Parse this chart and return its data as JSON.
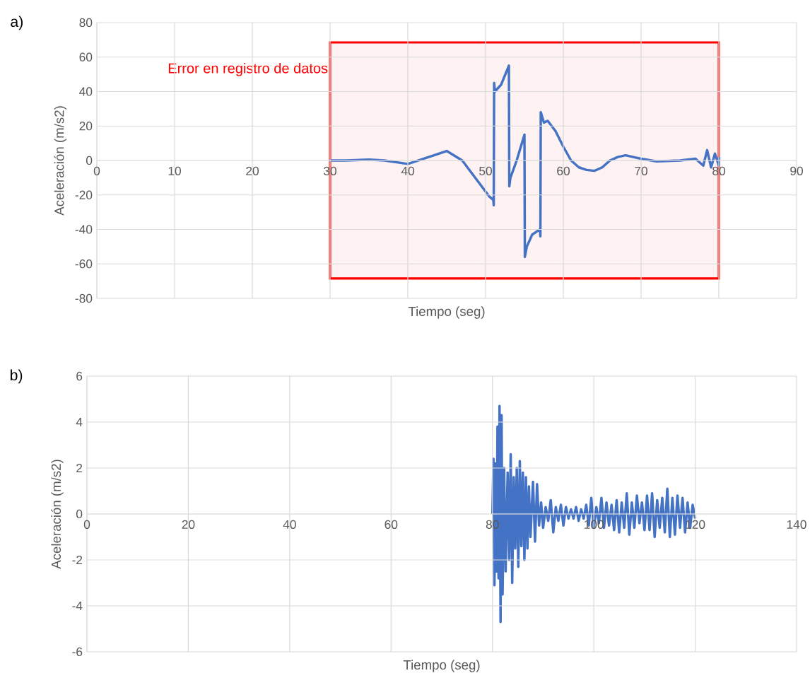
{
  "chart_data": [
    {
      "type": "line",
      "xlabel": "Tiempo (seg)",
      "ylabel": "Aceleración (m/s2)",
      "annotations": [
        "a)"
      ],
      "color": "#4472c4",
      "grid": true,
      "xlim": [
        0,
        90
      ],
      "ylim": [
        -80,
        80
      ],
      "xticks": [
        0,
        10,
        20,
        30,
        40,
        50,
        60,
        70,
        80,
        90
      ],
      "yticks": [
        -80,
        -60,
        -40,
        -20,
        0,
        20,
        40,
        60,
        80
      ],
      "bands": [
        {
          "axis": "x",
          "from": 30,
          "to": 80,
          "label": "Error en registro de datos",
          "color": "#ff0000"
        }
      ],
      "x": [
        30,
        32,
        35,
        37,
        40,
        42,
        45,
        47,
        49,
        50.5,
        51,
        51.05,
        51.1,
        51.2,
        52,
        53,
        53.05,
        53.2,
        54,
        55,
        55.05,
        55.3,
        56,
        57,
        57.05,
        57.1,
        57.5,
        58,
        59,
        60,
        61,
        62,
        63,
        64,
        65,
        66,
        67,
        68,
        69,
        70,
        72,
        75,
        77,
        78,
        78.5,
        79,
        79.5,
        80,
        80.05
      ],
      "values": [
        0,
        0,
        0.5,
        0,
        -2,
        1,
        5.5,
        0,
        -12,
        -21,
        -23,
        -26,
        45,
        40,
        44,
        55,
        -15,
        -10,
        0,
        15,
        -56,
        -50,
        -43,
        -40,
        -44,
        28,
        22,
        23,
        17,
        8,
        0,
        -4,
        -5.5,
        -6,
        -4,
        0,
        2,
        3,
        2,
        1,
        -0.5,
        0,
        1,
        -3,
        6,
        -4,
        4,
        -3,
        2
      ]
    },
    {
      "type": "line",
      "xlabel": "Tiempo (seg)",
      "ylabel": "Aceleración (m/s2)",
      "annotations": [
        "b)"
      ],
      "color": "#4472c4",
      "grid": true,
      "xlim": [
        0,
        140
      ],
      "ylim": [
        -6,
        6
      ],
      "xticks": [
        0,
        20,
        40,
        60,
        80,
        100,
        120,
        140
      ],
      "yticks": [
        -6,
        -4,
        -2,
        0,
        2,
        4,
        6
      ],
      "x": [
        80,
        80.2,
        80.4,
        80.6,
        80.8,
        81,
        81.2,
        81.4,
        81.6,
        81.8,
        82,
        82.3,
        82.6,
        83,
        83.3,
        83.6,
        83.9,
        84.2,
        84.5,
        84.8,
        85.1,
        85.4,
        85.7,
        86,
        86.3,
        86.6,
        86.9,
        87.2,
        87.5,
        88,
        88.4,
        88.8,
        89.2,
        89.6,
        90,
        90.5,
        91,
        91.5,
        92,
        92.5,
        93,
        93.5,
        94,
        94.5,
        95,
        95.5,
        96,
        96.5,
        97,
        97.5,
        98,
        98.5,
        99,
        99.5,
        100,
        100.5,
        101,
        101.5,
        102,
        102.5,
        103,
        103.5,
        104,
        104.5,
        105,
        105.5,
        106,
        106.5,
        107,
        107.5,
        108,
        108.5,
        109,
        109.5,
        110,
        110.5,
        111,
        111.5,
        112,
        112.5,
        113,
        113.5,
        114,
        114.5,
        115,
        115.5,
        116,
        116.5,
        117,
        117.5,
        118,
        118.5,
        119,
        119.5,
        120
      ],
      "values": [
        0,
        2.4,
        -3.1,
        2.2,
        -2.5,
        3.8,
        -2.8,
        4.7,
        -4.7,
        4.3,
        -3.5,
        2.0,
        -2.5,
        1.8,
        -2.0,
        2.6,
        -3.0,
        1.6,
        -1.5,
        2.0,
        -2.3,
        2.3,
        -1.4,
        1.8,
        -2.0,
        1.6,
        -1.5,
        1.2,
        -1.0,
        1.4,
        -1.2,
        1.3,
        -0.5,
        0.5,
        -0.6,
        0.3,
        -0.3,
        0.6,
        -0.8,
        0.3,
        -0.3,
        0.4,
        -0.5,
        0.3,
        -0.2,
        0.2,
        -0.2,
        0.3,
        -0.3,
        0.2,
        -0.2,
        0.4,
        -0.5,
        0.7,
        -0.6,
        0.3,
        -0.4,
        0.7,
        -0.6,
        0.5,
        -0.5,
        0.4,
        -0.7,
        0.6,
        -0.8,
        0.5,
        -0.6,
        0.9,
        -0.9,
        0.5,
        -0.6,
        0.8,
        -0.4,
        0.5,
        -0.7,
        0.8,
        -0.7,
        0.9,
        -1.0,
        0.6,
        -0.6,
        0.7,
        -0.8,
        1.1,
        -1.0,
        0.7,
        -0.9,
        0.8,
        -0.6,
        0.7,
        -0.8,
        0.5,
        -0.6,
        0.4,
        -0.2
      ]
    }
  ]
}
